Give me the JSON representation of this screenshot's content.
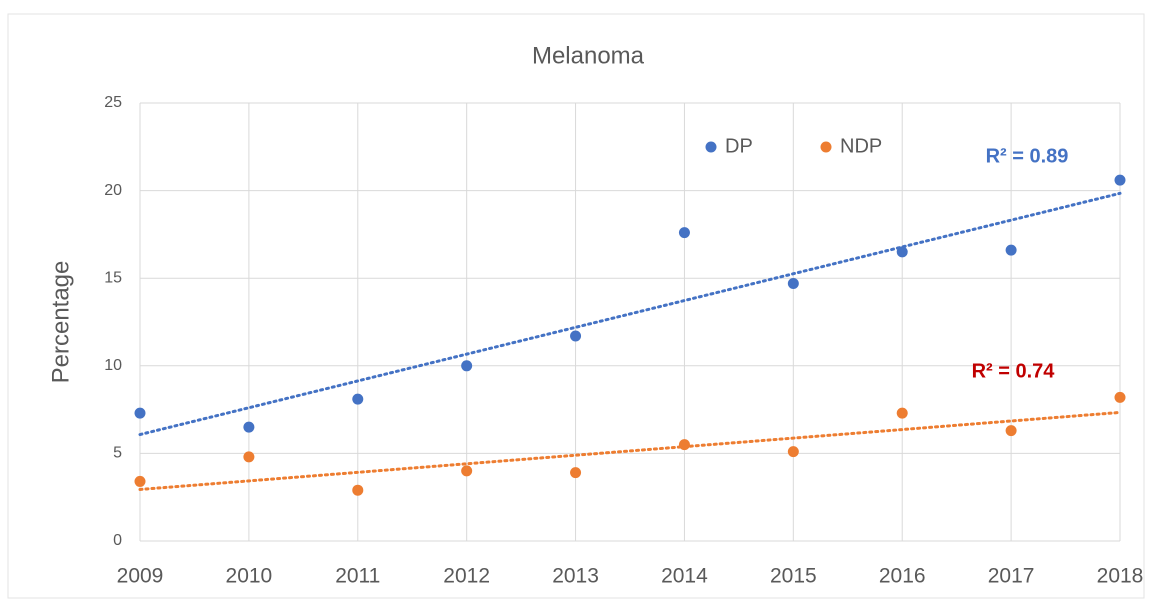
{
  "chart_data": {
    "type": "scatter",
    "title": "Melanoma",
    "ylabel": "Percentage",
    "x": [
      2009,
      2010,
      2011,
      2012,
      2013,
      2014,
      2015,
      2016,
      2017,
      2018
    ],
    "series": [
      {
        "name": "DP",
        "color": "#4472c4",
        "values": [
          7.3,
          6.5,
          8.1,
          10.0,
          11.7,
          17.6,
          14.7,
          16.5,
          16.6,
          20.6
        ]
      },
      {
        "name": "NDP",
        "color": "#ed7d31",
        "values": [
          3.4,
          4.8,
          2.9,
          4.0,
          3.9,
          5.5,
          5.1,
          7.3,
          6.3,
          8.2
        ]
      }
    ],
    "trendline": "linear",
    "annotations": [
      {
        "text": "R² = 0.89",
        "color": "#4472c4"
      },
      {
        "text": "R² = 0.74",
        "color": "#c00000"
      }
    ],
    "xlim": [
      2009,
      2018
    ],
    "xticks": [
      2009,
      2010,
      2011,
      2012,
      2013,
      2014,
      2015,
      2016,
      2017,
      2018
    ],
    "ylim": [
      0,
      25
    ],
    "yticks": [
      0,
      5,
      10,
      15,
      20,
      25
    ],
    "grid": true
  }
}
